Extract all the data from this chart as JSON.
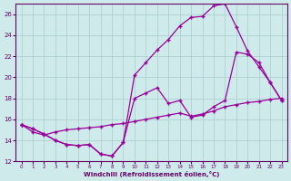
{
  "xlabel": "Windchill (Refroidissement éolien,°C)",
  "background_color": "#ceeaea",
  "grid_color": "#aacccc",
  "line_color": "#990099",
  "xlim": [
    -0.5,
    23.5
  ],
  "ylim": [
    12,
    27
  ],
  "xticks": [
    0,
    1,
    2,
    3,
    4,
    5,
    6,
    7,
    8,
    9,
    10,
    11,
    12,
    13,
    14,
    15,
    16,
    17,
    18,
    19,
    20,
    21,
    22,
    23
  ],
  "yticks": [
    12,
    14,
    16,
    18,
    20,
    22,
    24,
    26
  ],
  "line1_x": [
    0,
    1,
    2,
    3,
    4,
    5,
    6,
    7,
    8,
    9,
    10,
    11,
    12,
    13,
    14,
    15,
    16,
    17,
    18,
    19,
    20,
    21,
    22,
    23
  ],
  "line1_y": [
    15.5,
    15.1,
    14.6,
    14.0,
    13.6,
    13.5,
    13.6,
    12.7,
    12.5,
    13.8,
    20.2,
    21.4,
    22.6,
    23.6,
    24.9,
    25.7,
    25.8,
    26.8,
    27.0,
    24.8,
    22.5,
    21.0,
    19.5,
    17.8
  ],
  "line2_x": [
    0,
    1,
    2,
    3,
    4,
    5,
    6,
    7,
    8,
    9,
    10,
    11,
    12,
    13,
    14,
    15,
    16,
    17,
    18,
    19,
    20,
    21,
    22,
    23
  ],
  "line2_y": [
    15.5,
    15.1,
    14.6,
    14.0,
    13.6,
    13.5,
    13.6,
    12.7,
    12.5,
    13.8,
    18.0,
    18.5,
    19.0,
    17.5,
    17.8,
    16.2,
    16.4,
    17.2,
    17.8,
    22.4,
    22.2,
    21.4,
    19.5,
    17.8
  ],
  "line3_x": [
    0,
    1,
    2,
    3,
    4,
    5,
    6,
    7,
    8,
    9,
    10,
    11,
    12,
    13,
    14,
    15,
    16,
    17,
    18,
    19,
    20,
    21,
    22,
    23
  ],
  "line3_y": [
    15.5,
    14.8,
    14.5,
    14.8,
    15.0,
    15.1,
    15.2,
    15.3,
    15.5,
    15.6,
    15.8,
    16.0,
    16.2,
    16.4,
    16.6,
    16.3,
    16.5,
    16.8,
    17.2,
    17.4,
    17.6,
    17.7,
    17.9,
    18.0
  ]
}
